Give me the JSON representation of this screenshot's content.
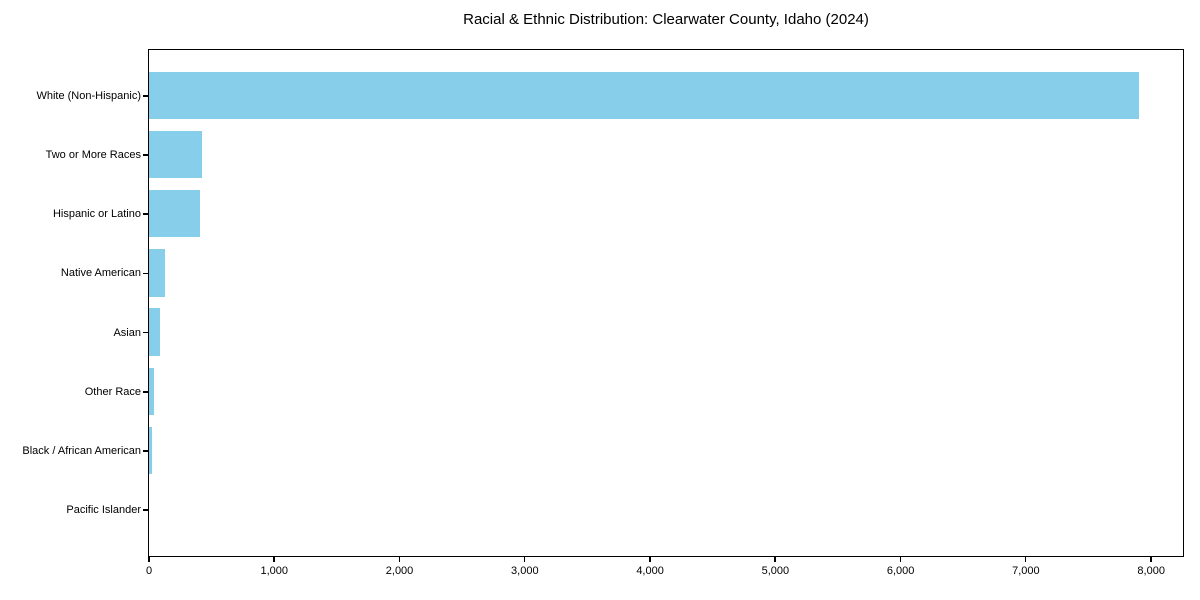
{
  "chart_data": {
    "type": "bar",
    "orientation": "horizontal",
    "title": "Racial & Ethnic Distribution: Clearwater County, Idaho (2024)",
    "categories": [
      "White (Non-Hispanic)",
      "Two or More Races",
      "Hispanic or Latino",
      "Native American",
      "Asian",
      "Other Race",
      "Black / African American",
      "Pacific Islander"
    ],
    "values": [
      7900,
      420,
      410,
      125,
      85,
      40,
      20,
      0
    ],
    "xlabel": "",
    "ylabel": "",
    "xlim": [
      0,
      8270
    ],
    "x_tick_values": [
      0,
      1000,
      2000,
      3000,
      4000,
      5000,
      6000,
      7000,
      8000
    ],
    "x_tick_labels": [
      "0",
      "1,000",
      "2,000",
      "3,000",
      "4,000",
      "5,000",
      "6,000",
      "7,000",
      "8,000"
    ],
    "bar_color": "#87CEEB",
    "grid": false,
    "legend_position": "none"
  }
}
